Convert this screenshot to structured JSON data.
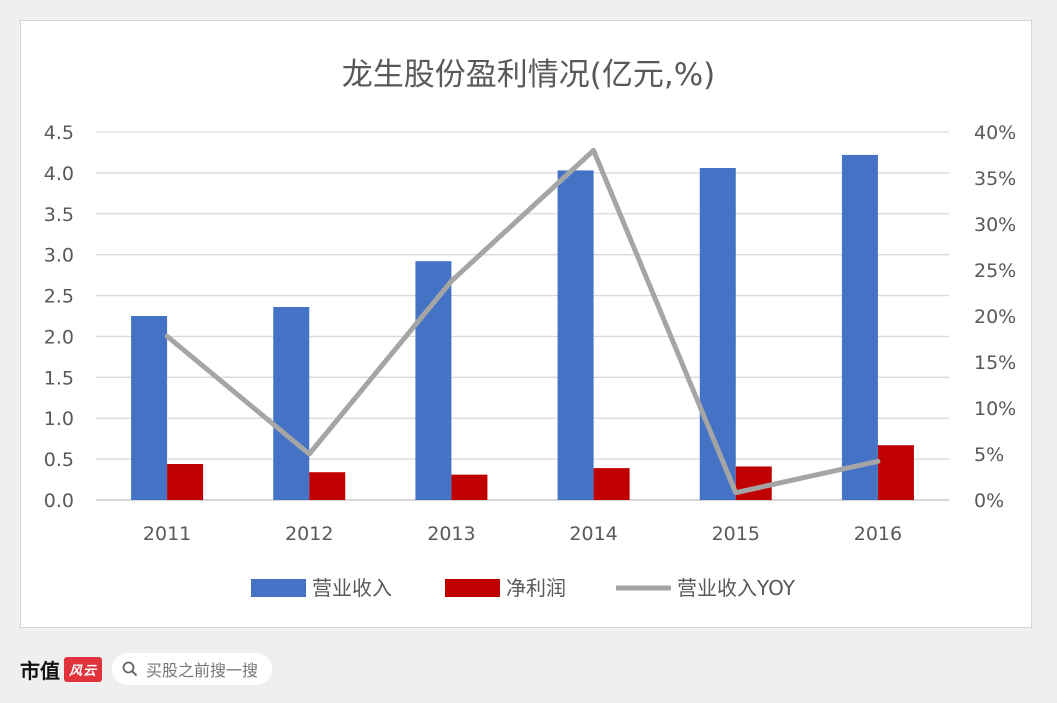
{
  "chart_data": {
    "type": "bar",
    "title": "龙生股份盈利情况(亿元,%)",
    "categories": [
      "2011",
      "2012",
      "2013",
      "2014",
      "2015",
      "2016"
    ],
    "series": [
      {
        "name": "营业收入",
        "type": "bar",
        "axis": "left",
        "color": "#4472c4",
        "values": [
          2.25,
          2.36,
          2.92,
          4.03,
          4.06,
          4.22
        ]
      },
      {
        "name": "净利润",
        "type": "bar",
        "axis": "left",
        "color": "#c00000",
        "values": [
          0.44,
          0.34,
          0.31,
          0.39,
          0.41,
          0.67
        ]
      },
      {
        "name": "营业收入YOY",
        "type": "line",
        "axis": "right",
        "color": "#a5a5a5",
        "values": [
          17.8,
          5.0,
          23.8,
          38.0,
          0.8,
          4.2
        ]
      }
    ],
    "y_left": {
      "ylim": [
        0,
        4.5
      ],
      "ticks": [
        "0.0",
        "0.5",
        "1.0",
        "1.5",
        "2.0",
        "2.5",
        "3.0",
        "3.5",
        "4.0",
        "4.5"
      ]
    },
    "y_right": {
      "ylim": [
        0,
        40
      ],
      "ticks": [
        "0%",
        "5%",
        "10%",
        "15%",
        "20%",
        "25%",
        "30%",
        "35%",
        "40%"
      ]
    },
    "grid": true,
    "legend": "bottom"
  },
  "footer": {
    "brand_name": "市值",
    "brand_logo": "风云",
    "search_icon": "search-icon",
    "search_placeholder": "买股之前搜一搜"
  }
}
